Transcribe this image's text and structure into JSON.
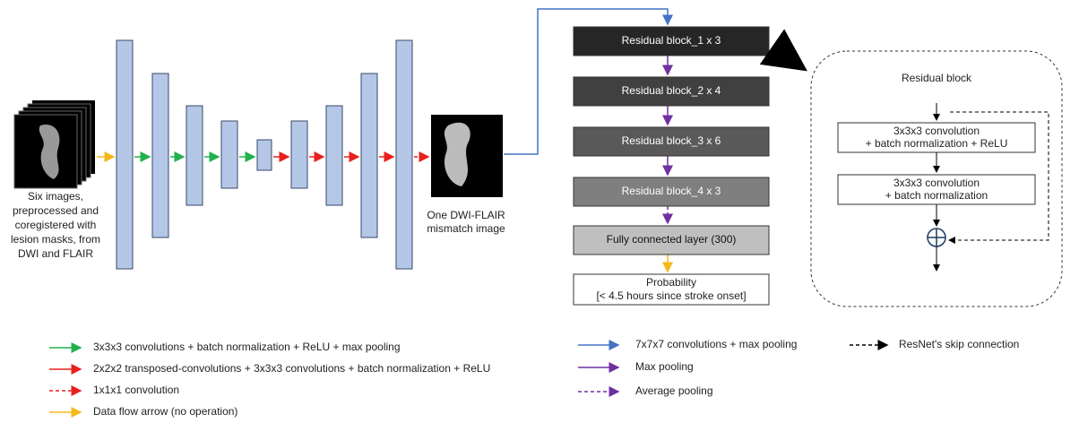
{
  "input": {
    "caption": [
      "Six images,",
      "preprocessed and",
      "coregistered with",
      "lesion masks, from",
      "DWI and FLAIR"
    ]
  },
  "output": {
    "caption": [
      "One DWI-FLAIR",
      "mismatch image"
    ]
  },
  "network": {
    "blocks": [
      "Residual block_1 x 3",
      "Residual block_2 x 4",
      "Residual block_3 x 6",
      "Residual block_4 x 3",
      "Fully connected layer (300)"
    ],
    "probability": [
      "Probability",
      "[< 4.5 hours since stroke onset]"
    ]
  },
  "residual_block": {
    "title": "Residual block",
    "step1": [
      "3x3x3 convolution",
      "+ batch normalization + ReLU"
    ],
    "step2": [
      "3x3x3 convolution",
      "+ batch normalization"
    ]
  },
  "legend": [
    "3x3x3 convolutions + batch normalization + ReLU + max pooling",
    "2x2x2 transposed-convolutions + 3x3x3 convolutions + batch normalization + ReLU",
    "1x1x1 convolution",
    "Data flow arrow (no operation)",
    "7x7x7 convolutions + max pooling",
    "Max pooling",
    "Average pooling",
    "ResNet's skip connection"
  ]
}
